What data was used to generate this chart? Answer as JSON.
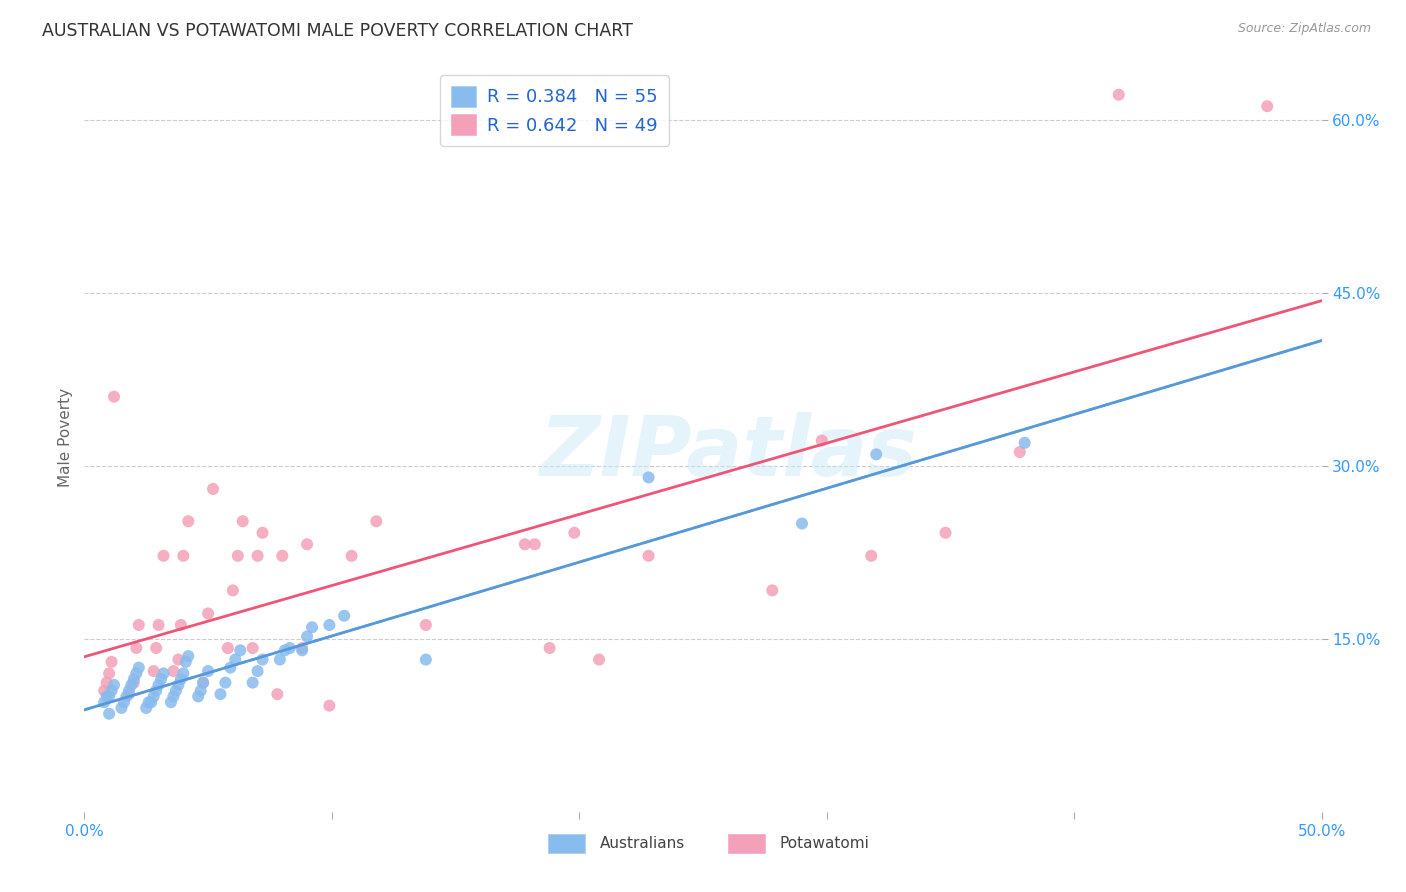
{
  "title": "AUSTRALIAN VS POTAWATOMI MALE POVERTY CORRELATION CHART",
  "source": "Source: ZipAtlas.com",
  "ylabel": "Male Poverty",
  "xlim": [
    0.0,
    0.5
  ],
  "ylim": [
    0.0,
    0.65
  ],
  "xticks": [
    0.0,
    0.1,
    0.2,
    0.3,
    0.4,
    0.5
  ],
  "xtick_labels": [
    "0.0%",
    "",
    "",
    "",
    "",
    "50.0%"
  ],
  "ytick_positions": [
    0.15,
    0.3,
    0.45,
    0.6
  ],
  "ytick_labels": [
    "15.0%",
    "30.0%",
    "45.0%",
    "60.0%"
  ],
  "background_color": "#ffffff",
  "grid_color": "#cccccc",
  "watermark": "ZIPatlas",
  "legend_R_australian": "0.384",
  "legend_N_australian": "55",
  "legend_R_potawatomi": "0.642",
  "legend_N_potawatomi": "49",
  "australian_color": "#88bbee",
  "potawatomi_color": "#f4a0b8",
  "australian_line_color": "#5599dd",
  "potawatomi_line_color": "#ee5577",
  "dashed_line_color": "#aaaaaa",
  "legend_text_color": "#2266cc",
  "tick_color": "#3399ff",
  "australian_x": [
    0.008,
    0.009,
    0.01,
    0.01,
    0.011,
    0.012,
    0.015,
    0.016,
    0.017,
    0.018,
    0.019,
    0.02,
    0.021,
    0.022,
    0.025,
    0.026,
    0.027,
    0.028,
    0.029,
    0.03,
    0.031,
    0.032,
    0.035,
    0.036,
    0.037,
    0.038,
    0.039,
    0.04,
    0.041,
    0.042,
    0.046,
    0.047,
    0.048,
    0.05,
    0.055,
    0.057,
    0.059,
    0.061,
    0.063,
    0.068,
    0.07,
    0.072,
    0.079,
    0.081,
    0.083,
    0.088,
    0.09,
    0.092,
    0.099,
    0.105,
    0.138,
    0.228,
    0.29,
    0.32,
    0.38
  ],
  "australian_y": [
    0.095,
    0.1,
    0.085,
    0.1,
    0.105,
    0.11,
    0.09,
    0.095,
    0.1,
    0.105,
    0.11,
    0.115,
    0.12,
    0.125,
    0.09,
    0.095,
    0.095,
    0.1,
    0.105,
    0.11,
    0.115,
    0.12,
    0.095,
    0.1,
    0.105,
    0.11,
    0.115,
    0.12,
    0.13,
    0.135,
    0.1,
    0.105,
    0.112,
    0.122,
    0.102,
    0.112,
    0.125,
    0.132,
    0.14,
    0.112,
    0.122,
    0.132,
    0.132,
    0.14,
    0.142,
    0.14,
    0.152,
    0.16,
    0.162,
    0.17,
    0.132,
    0.29,
    0.25,
    0.31,
    0.32
  ],
  "potawatomi_x": [
    0.008,
    0.009,
    0.01,
    0.011,
    0.012,
    0.018,
    0.02,
    0.021,
    0.022,
    0.028,
    0.029,
    0.03,
    0.032,
    0.036,
    0.038,
    0.039,
    0.04,
    0.042,
    0.048,
    0.05,
    0.052,
    0.058,
    0.06,
    0.062,
    0.064,
    0.068,
    0.07,
    0.072,
    0.078,
    0.08,
    0.088,
    0.09,
    0.099,
    0.108,
    0.118,
    0.138,
    0.178,
    0.182,
    0.188,
    0.198,
    0.208,
    0.228,
    0.278,
    0.298,
    0.318,
    0.348,
    0.378,
    0.418,
    0.478
  ],
  "potawatomi_y": [
    0.105,
    0.112,
    0.12,
    0.13,
    0.36,
    0.102,
    0.112,
    0.142,
    0.162,
    0.122,
    0.142,
    0.162,
    0.222,
    0.122,
    0.132,
    0.162,
    0.222,
    0.252,
    0.112,
    0.172,
    0.28,
    0.142,
    0.192,
    0.222,
    0.252,
    0.142,
    0.222,
    0.242,
    0.102,
    0.222,
    0.142,
    0.232,
    0.092,
    0.222,
    0.252,
    0.162,
    0.232,
    0.232,
    0.142,
    0.242,
    0.132,
    0.222,
    0.192,
    0.322,
    0.222,
    0.242,
    0.312,
    0.622,
    0.612
  ]
}
